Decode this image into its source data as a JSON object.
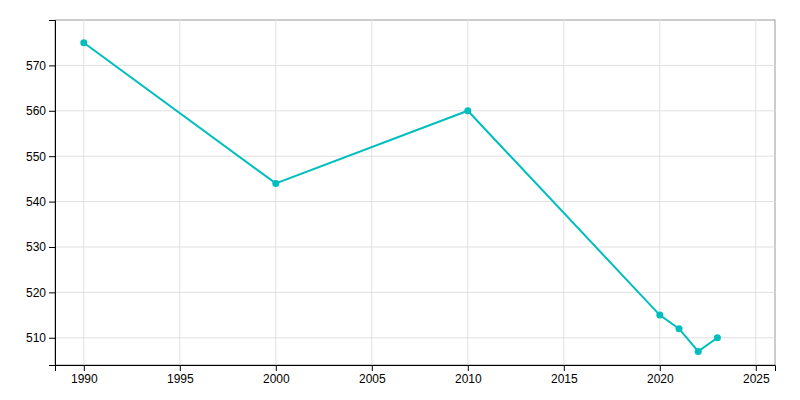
{
  "chart_data": {
    "type": "line",
    "x": [
      1990,
      2000,
      2010,
      2020,
      2021,
      2022,
      2023
    ],
    "values": [
      575,
      544,
      560,
      515,
      512,
      507,
      510
    ],
    "color": "#00BEBE",
    "marker": "circle",
    "xlim": [
      1988.5,
      2026
    ],
    "ylim": [
      504,
      580
    ],
    "xticks": [
      1990,
      1995,
      2000,
      2005,
      2010,
      2015,
      2020,
      2025
    ],
    "yticks": [
      510,
      520,
      530,
      540,
      550,
      560,
      570
    ],
    "grid": true
  }
}
